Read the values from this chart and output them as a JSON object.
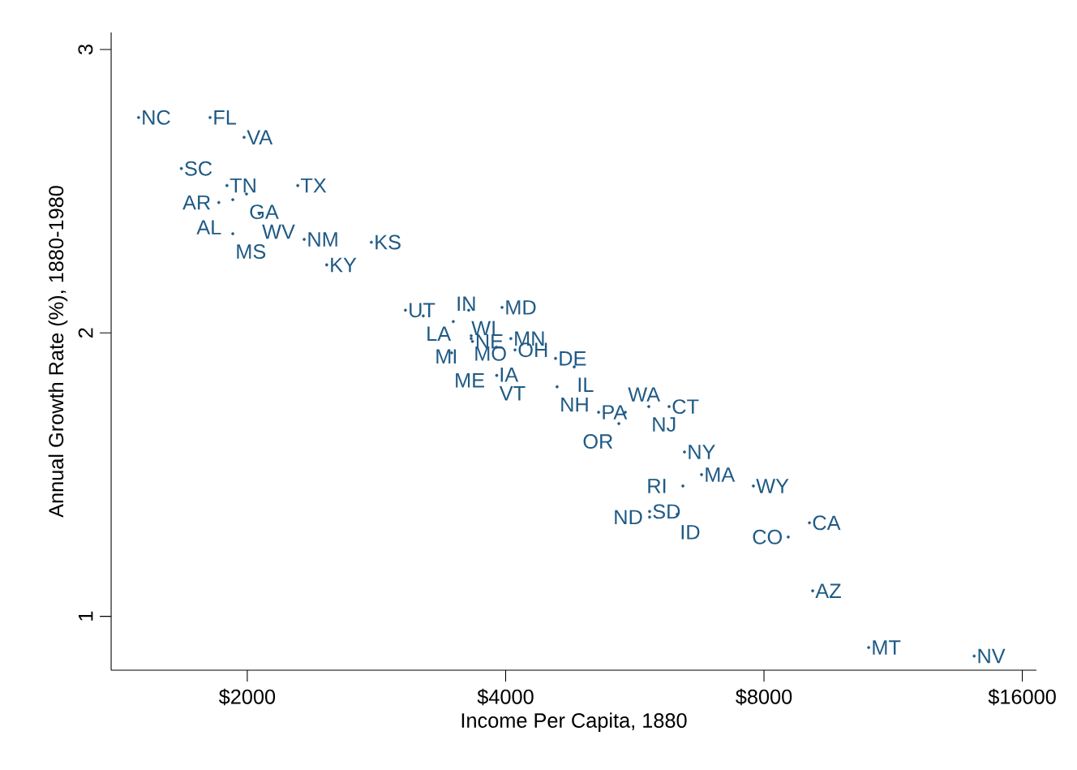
{
  "chart_data": {
    "type": "scatter",
    "xlabel": "Income Per Capita, 1880",
    "ylabel": "Annual Growth Rate (%), 1880-1980",
    "log": "x",
    "marker": "circle",
    "grid": false,
    "color": "#1f5a85",
    "xlim": [
      1388,
      16620
    ],
    "ylim": [
      0.81,
      3.06
    ],
    "xticks": [
      {
        "value": 2000,
        "label": "$2000"
      },
      {
        "value": 4000,
        "label": "$4000"
      },
      {
        "value": 8000,
        "label": "$8000"
      },
      {
        "value": 16000,
        "label": "$16000"
      }
    ],
    "yticks": [
      1,
      2,
      3
    ],
    "x": [
      1494,
      1810,
      1983,
      1676,
      1894,
      1996,
      1853,
      1924,
      2066,
      2290,
      1924,
      2330,
      2790,
      2475,
      3057,
      3207,
      3476,
      3623,
      3962,
      3647,
      3647,
      3660,
      4056,
      3902,
      4102,
      3460,
      3906,
      4573,
      4808,
      4592,
      5133,
      5514,
      5873,
      6202,
      5420,
      6464,
      6766,
      6436,
      7776,
      5886,
      5886,
      6338,
      9038,
      8539,
      9116,
      10594,
      14060
    ],
    "values": [
      2.76,
      2.76,
      2.69,
      2.58,
      2.52,
      2.49,
      2.46,
      2.47,
      2.42,
      2.52,
      2.35,
      2.33,
      2.32,
      2.24,
      2.08,
      2.06,
      2.04,
      2.08,
      2.09,
      1.99,
      1.98,
      1.97,
      1.98,
      1.95,
      1.94,
      1.93,
      1.85,
      1.91,
      1.88,
      1.81,
      1.72,
      1.72,
      1.74,
      1.74,
      1.68,
      1.58,
      1.5,
      1.46,
      1.46,
      1.37,
      1.35,
      1.36,
      1.33,
      1.28,
      1.09,
      0.89,
      0.86
    ],
    "value_labels": [
      "NC",
      "FL",
      "VA",
      "SC",
      "TN",
      "GA",
      "AR",
      "AL",
      "WV",
      "TX",
      "MS",
      "NM",
      "KS",
      "KY",
      "UT",
      "LA",
      "IN",
      "WI",
      "MD",
      "MO",
      "MI",
      "NE",
      "MN",
      "IA",
      "OH",
      "ME",
      "VT",
      "DE",
      "IL",
      "NH",
      "PA",
      "WA",
      "NJ",
      "CT",
      "OR",
      "NY",
      "MA",
      "RI",
      "WY",
      "SD",
      "ND",
      "ID",
      "CA",
      "CO",
      "AZ",
      "MT",
      "NV"
    ]
  }
}
